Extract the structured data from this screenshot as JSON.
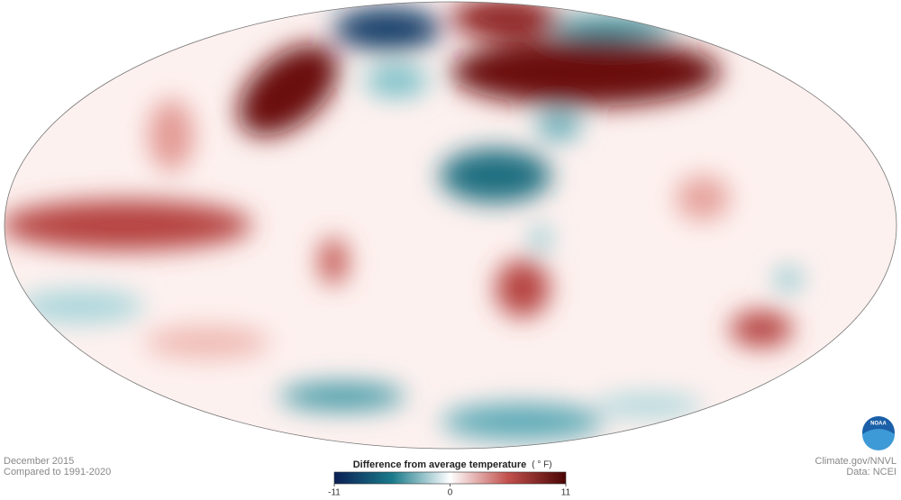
{
  "map": {
    "date": "December 2015",
    "baseline": "Compared to 1991-2020"
  },
  "legend": {
    "title": "Difference from average temperature",
    "unit": "( ° F)",
    "range": [
      -11,
      11
    ],
    "ticks": [
      -11,
      0,
      11
    ]
  },
  "credits": {
    "source": "Climate.gov/NNVL",
    "data": "Data: NCEI"
  },
  "logo": "NOAA"
}
